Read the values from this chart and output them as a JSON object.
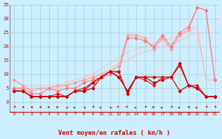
{
  "x": [
    0,
    1,
    2,
    3,
    4,
    5,
    6,
    7,
    8,
    9,
    10,
    11,
    12,
    13,
    14,
    15,
    16,
    17,
    18,
    19,
    20,
    21,
    22,
    23
  ],
  "series": [
    {
      "color": "#ffbbbb",
      "linewidth": 0.8,
      "marker": null,
      "y": [
        8,
        6,
        6,
        6,
        6,
        6,
        7,
        8,
        9,
        10,
        12,
        14,
        16,
        18,
        19,
        20,
        21,
        22,
        23,
        24,
        26,
        27,
        8,
        8
      ]
    },
    {
      "color": "#ffbbbb",
      "linewidth": 0.8,
      "marker": null,
      "y": [
        5,
        5,
        5,
        5,
        5,
        5,
        6,
        7,
        8,
        9,
        10,
        12,
        14,
        15,
        17,
        18,
        19,
        20,
        21,
        22,
        24,
        25,
        8,
        8
      ]
    },
    {
      "color": "#ff9999",
      "linewidth": 0.8,
      "marker": "D",
      "markersize": 2,
      "y": [
        8,
        6,
        4,
        5,
        5,
        6,
        6,
        7,
        8,
        9,
        10,
        11,
        13,
        24,
        24,
        23,
        19,
        23,
        19,
        24,
        26,
        34,
        33,
        8
      ]
    },
    {
      "color": "#ff7777",
      "linewidth": 0.8,
      "marker": "D",
      "markersize": 2,
      "y": [
        5,
        5,
        3,
        3,
        5,
        4,
        5,
        5,
        7,
        8,
        9,
        10,
        11,
        23,
        23,
        22,
        20,
        24,
        20,
        25,
        27,
        34,
        33,
        8
      ]
    },
    {
      "color": "#cc0000",
      "linewidth": 0.9,
      "marker": "D",
      "markersize": 2,
      "y": [
        4,
        4,
        2,
        2,
        2,
        2,
        2,
        4,
        4,
        5,
        9,
        11,
        11,
        3,
        9,
        9,
        9,
        9,
        9,
        4,
        6,
        5,
        2,
        2
      ]
    },
    {
      "color": "#dd2222",
      "linewidth": 0.9,
      "marker": "D",
      "markersize": 2,
      "y": [
        4,
        4,
        2,
        2,
        2,
        3,
        2,
        4,
        5,
        7,
        9,
        11,
        9,
        4,
        9,
        8,
        6,
        9,
        9,
        13,
        6,
        6,
        2,
        2
      ]
    },
    {
      "color": "#cc0000",
      "linewidth": 0.9,
      "marker": "D",
      "markersize": 2,
      "y": [
        4,
        4,
        2,
        2,
        2,
        2,
        2,
        4,
        4,
        7,
        9,
        11,
        9,
        4,
        9,
        9,
        7,
        8,
        9,
        14,
        6,
        5,
        2,
        2
      ]
    }
  ],
  "xlabel": "Vent moyen/en rafales ( km/h )",
  "xlim": [
    -0.5,
    23.5
  ],
  "ylim": [
    0,
    35
  ],
  "yticks": [
    0,
    5,
    10,
    15,
    20,
    25,
    30,
    35
  ],
  "xticks": [
    0,
    1,
    2,
    3,
    4,
    5,
    6,
    7,
    8,
    9,
    10,
    11,
    12,
    13,
    14,
    15,
    16,
    17,
    18,
    19,
    20,
    21,
    22,
    23
  ],
  "bg_color": "#cceeff",
  "grid_color": "#aacccc",
  "text_color": "#cc0000",
  "xlabel_color": "#cc0000",
  "tick_color": "#cc0000",
  "arrow_angles": [
    225,
    270,
    270,
    270,
    90,
    90,
    315,
    45,
    315,
    225,
    45,
    315,
    135,
    135,
    45,
    225,
    90,
    45,
    225,
    45,
    270,
    45,
    225,
    225
  ]
}
